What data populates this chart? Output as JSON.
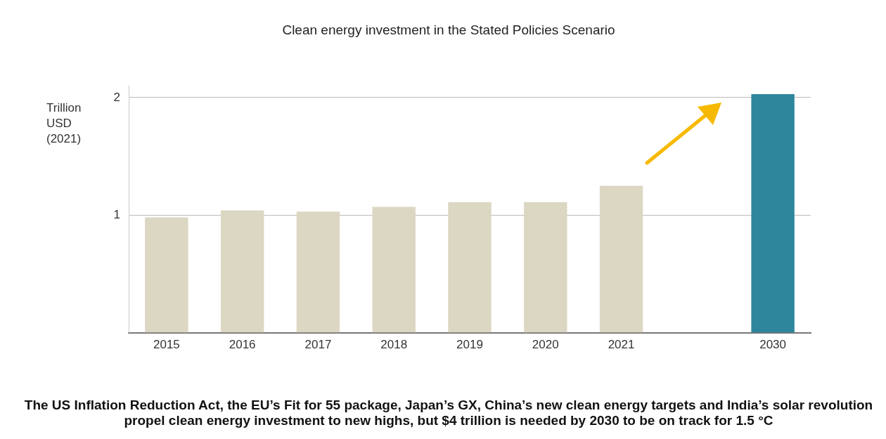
{
  "chart_data": {
    "type": "bar",
    "title": "Clean energy investment in the Stated Policies Scenario",
    "ylabel": "Trillion USD (2021)",
    "categories": [
      "2015",
      "2016",
      "2017",
      "2018",
      "2019",
      "2020",
      "2021",
      null,
      "2030"
    ],
    "values": [
      0.98,
      1.04,
      1.03,
      1.07,
      1.11,
      1.11,
      1.25,
      null,
      2.03
    ],
    "colors": [
      "#dcd7c3",
      "#dcd7c3",
      "#dcd7c3",
      "#dcd7c3",
      "#dcd7c3",
      "#dcd7c3",
      "#dcd7c3",
      "#dcd7c3",
      "#2e869c"
    ],
    "ylim": [
      0,
      2.1
    ],
    "yticks": [
      1,
      2
    ],
    "grid": "y",
    "legend": false,
    "annotations": [
      "The US Inflation Reduction Act, the EU’s Fit for 55 package, Japan’s GX, China’s new clean energy targets and India’s solar revolution propel clean energy investment to new highs, but $4 trillion is needed by 2030 to be on track for 1.5 °C"
    ]
  }
}
